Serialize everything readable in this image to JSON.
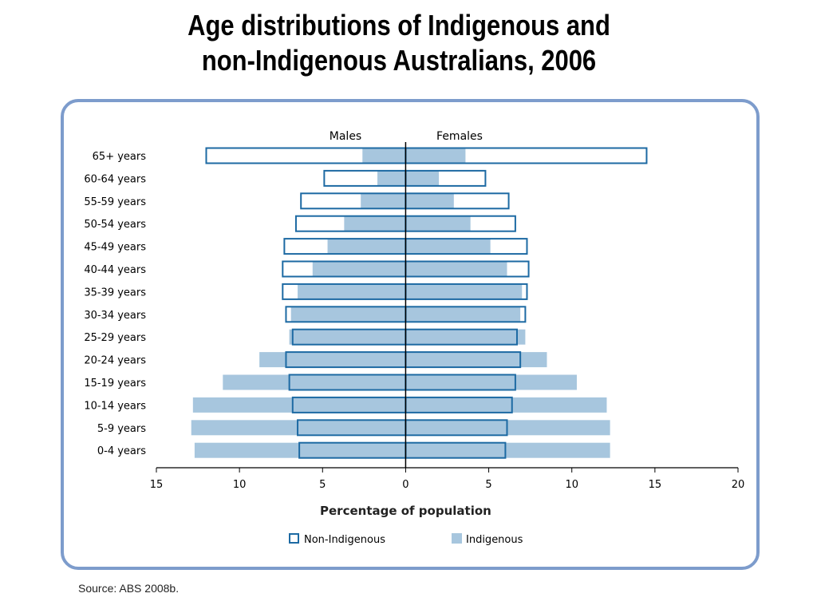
{
  "title": {
    "line1": "Age distributions of Indigenous and",
    "line2": "non-Indigenous Australians, 2006"
  },
  "source": {
    "label": "Source:",
    "text": "ABS 2008b."
  },
  "colors": {
    "panel_border": "#7d9ccc",
    "non_indigenous_outline": "#1d6aa3",
    "indigenous_fill": "#a7c6de",
    "axis": "#000000"
  },
  "chart_data": {
    "type": "bar",
    "orientation": "horizontal",
    "layout": "population-pyramid",
    "title": "",
    "xlabel": "Percentage of population",
    "side_labels": {
      "left": "Males",
      "right": "Females"
    },
    "xlim": [
      -15,
      20
    ],
    "xticks": [
      -15,
      -10,
      -5,
      0,
      5,
      10,
      15,
      20
    ],
    "xtick_labels": [
      "15",
      "10",
      "5",
      "0",
      "5",
      "10",
      "15",
      "20"
    ],
    "categories": [
      "0-4 years",
      "5-9 years",
      "10-14 years",
      "15-19 years",
      "20-24 years",
      "25-29 years",
      "30-34 years",
      "35-39 years",
      "40-44 years",
      "45-49 years",
      "50-54 years",
      "55-59 years",
      "60-64 years",
      "65+ years"
    ],
    "series": [
      {
        "name": "Non-Indigenous",
        "style": "outline",
        "males": [
          6.4,
          6.5,
          6.8,
          7.0,
          7.2,
          6.8,
          7.2,
          7.4,
          7.4,
          7.3,
          6.6,
          6.3,
          4.9,
          12.0
        ],
        "females": [
          6.0,
          6.1,
          6.4,
          6.6,
          6.9,
          6.7,
          7.2,
          7.3,
          7.4,
          7.3,
          6.6,
          6.2,
          4.8,
          14.5
        ]
      },
      {
        "name": "Indigenous",
        "style": "fill",
        "males": [
          12.7,
          12.9,
          12.8,
          11.0,
          8.8,
          7.0,
          6.9,
          6.5,
          5.6,
          4.7,
          3.7,
          2.7,
          1.7,
          2.6
        ],
        "females": [
          12.3,
          12.3,
          12.1,
          10.3,
          8.5,
          7.2,
          6.9,
          7.0,
          6.1,
          5.1,
          3.9,
          2.9,
          2.0,
          3.6
        ]
      }
    ],
    "legend": {
      "position": "bottom",
      "items": [
        {
          "label": "Non-Indigenous",
          "style": "outline"
        },
        {
          "label": "Indigenous",
          "style": "fill"
        }
      ]
    },
    "grid": false
  }
}
